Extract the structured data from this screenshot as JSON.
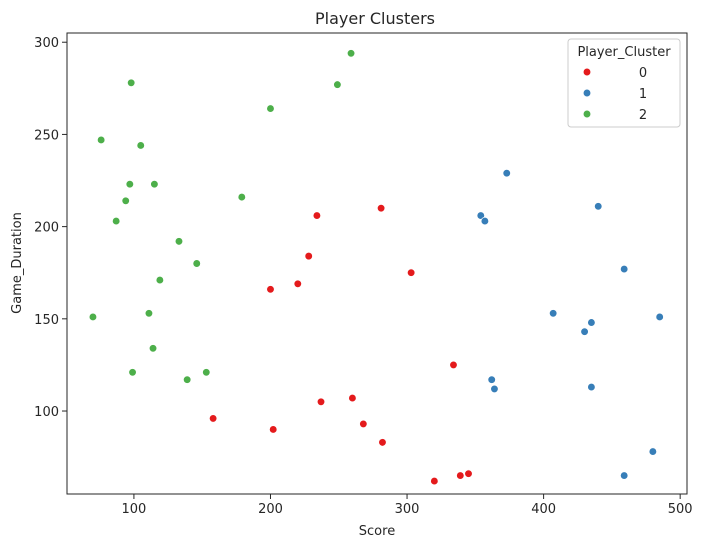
{
  "chart_data": {
    "type": "scatter",
    "title": "Player Clusters",
    "xlabel": "Score",
    "ylabel": "Game_Duration",
    "xlim": [
      51,
      505
    ],
    "ylim": [
      55,
      305
    ],
    "xticks": [
      100,
      200,
      300,
      400,
      500
    ],
    "yticks": [
      100,
      150,
      200,
      250,
      300
    ],
    "grid": false,
    "legend": {
      "title": "Player_Cluster",
      "placement": "top-right"
    },
    "series": [
      {
        "name": "0",
        "color": "#e41a1c",
        "points": [
          [
            234,
            206
          ],
          [
            281,
            210
          ],
          [
            228,
            184
          ],
          [
            220,
            169
          ],
          [
            200,
            166
          ],
          [
            303,
            175
          ],
          [
            334,
            125
          ],
          [
            260,
            107
          ],
          [
            237,
            105
          ],
          [
            158,
            96
          ],
          [
            202,
            90
          ],
          [
            268,
            93
          ],
          [
            282,
            83
          ],
          [
            320,
            62
          ],
          [
            339,
            65
          ],
          [
            345,
            66
          ]
        ]
      },
      {
        "name": "1",
        "color": "#377eb8",
        "points": [
          [
            373,
            229
          ],
          [
            354,
            206
          ],
          [
            357,
            203
          ],
          [
            440,
            211
          ],
          [
            459,
            177
          ],
          [
            407,
            153
          ],
          [
            435,
            148
          ],
          [
            430,
            143
          ],
          [
            485,
            151
          ],
          [
            362,
            117
          ],
          [
            364,
            112
          ],
          [
            435,
            113
          ],
          [
            480,
            78
          ],
          [
            459,
            65
          ]
        ]
      },
      {
        "name": "2",
        "color": "#4daf4a",
        "points": [
          [
            259,
            294
          ],
          [
            98,
            278
          ],
          [
            249,
            277
          ],
          [
            200,
            264
          ],
          [
            76,
            247
          ],
          [
            105,
            244
          ],
          [
            97,
            223
          ],
          [
            115,
            223
          ],
          [
            179,
            216
          ],
          [
            94,
            214
          ],
          [
            87,
            203
          ],
          [
            133,
            192
          ],
          [
            146,
            180
          ],
          [
            119,
            171
          ],
          [
            70,
            151
          ],
          [
            111,
            153
          ],
          [
            114,
            134
          ],
          [
            99,
            121
          ],
          [
            153,
            121
          ],
          [
            139,
            117
          ]
        ]
      }
    ]
  }
}
